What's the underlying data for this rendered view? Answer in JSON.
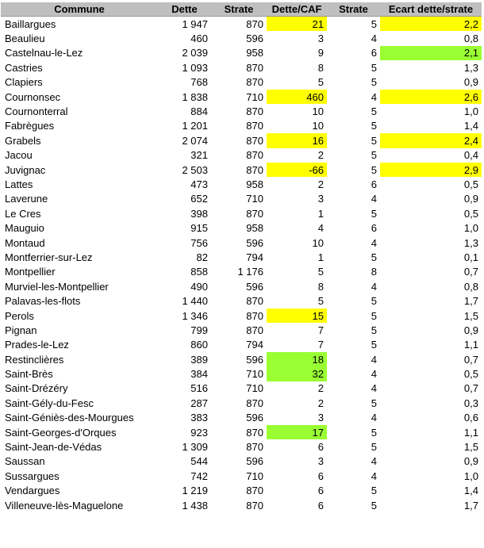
{
  "headers": [
    "Commune",
    "Dette",
    "Strate",
    "Dette/CAF",
    "Strate",
    "Ecart dette/strate"
  ],
  "colors": {
    "header_bg": "#bfbfbf",
    "highlight_yellow": "#ffff00",
    "highlight_green": "#99ff33"
  },
  "rows": [
    {
      "commune": "Baillargues",
      "dette": "1 947",
      "strate": "870",
      "dette_caf": "21",
      "dette_caf_hl": "yellow",
      "strate2": "5",
      "ecart": "2,2",
      "ecart_hl": "yellow"
    },
    {
      "commune": "Beaulieu",
      "dette": "460",
      "strate": "596",
      "dette_caf": "3",
      "dette_caf_hl": "",
      "strate2": "4",
      "ecart": "0,8",
      "ecart_hl": ""
    },
    {
      "commune": "Castelnau-le-Lez",
      "dette": "2 039",
      "strate": "958",
      "dette_caf": "9",
      "dette_caf_hl": "",
      "strate2": "6",
      "ecart": "2,1",
      "ecart_hl": "green"
    },
    {
      "commune": "Castries",
      "dette": "1 093",
      "strate": "870",
      "dette_caf": "8",
      "dette_caf_hl": "",
      "strate2": "5",
      "ecart": "1,3",
      "ecart_hl": ""
    },
    {
      "commune": "Clapiers",
      "dette": "768",
      "strate": "870",
      "dette_caf": "5",
      "dette_caf_hl": "",
      "strate2": "5",
      "ecart": "0,9",
      "ecart_hl": ""
    },
    {
      "commune": "Cournonsec",
      "dette": "1 838",
      "strate": "710",
      "dette_caf": "460",
      "dette_caf_hl": "yellow",
      "strate2": "4",
      "ecart": "2,6",
      "ecart_hl": "yellow"
    },
    {
      "commune": "Cournonterral",
      "dette": "884",
      "strate": "870",
      "dette_caf": "10",
      "dette_caf_hl": "",
      "strate2": "5",
      "ecart": "1,0",
      "ecart_hl": ""
    },
    {
      "commune": "Fabrègues",
      "dette": "1 201",
      "strate": "870",
      "dette_caf": "10",
      "dette_caf_hl": "",
      "strate2": "5",
      "ecart": "1,4",
      "ecart_hl": ""
    },
    {
      "commune": "Grabels",
      "dette": "2 074",
      "strate": "870",
      "dette_caf": "16",
      "dette_caf_hl": "yellow",
      "strate2": "5",
      "ecart": "2,4",
      "ecart_hl": "yellow"
    },
    {
      "commune": "Jacou",
      "dette": "321",
      "strate": "870",
      "dette_caf": "2",
      "dette_caf_hl": "",
      "strate2": "5",
      "ecart": "0,4",
      "ecart_hl": ""
    },
    {
      "commune": "Juvignac",
      "dette": "2 503",
      "strate": "870",
      "dette_caf": "-66",
      "dette_caf_hl": "yellow",
      "strate2": "5",
      "ecart": "2,9",
      "ecart_hl": "yellow"
    },
    {
      "commune": "Lattes",
      "dette": "473",
      "strate": "958",
      "dette_caf": "2",
      "dette_caf_hl": "",
      "strate2": "6",
      "ecart": "0,5",
      "ecart_hl": ""
    },
    {
      "commune": "Laverune",
      "dette": "652",
      "strate": "710",
      "dette_caf": "3",
      "dette_caf_hl": "",
      "strate2": "4",
      "ecart": "0,9",
      "ecart_hl": ""
    },
    {
      "commune": "Le Cres",
      "dette": "398",
      "strate": "870",
      "dette_caf": "1",
      "dette_caf_hl": "",
      "strate2": "5",
      "ecart": "0,5",
      "ecart_hl": ""
    },
    {
      "commune": "Mauguio",
      "dette": "915",
      "strate": "958",
      "dette_caf": "4",
      "dette_caf_hl": "",
      "strate2": "6",
      "ecart": "1,0",
      "ecart_hl": ""
    },
    {
      "commune": "Montaud",
      "dette": "756",
      "strate": "596",
      "dette_caf": "10",
      "dette_caf_hl": "",
      "strate2": "4",
      "ecart": "1,3",
      "ecart_hl": ""
    },
    {
      "commune": "Montferrier-sur-Lez",
      "dette": "82",
      "strate": "794",
      "dette_caf": "1",
      "dette_caf_hl": "",
      "strate2": "5",
      "ecart": "0,1",
      "ecart_hl": ""
    },
    {
      "commune": "Montpellier",
      "dette": "858",
      "strate": "1 176",
      "dette_caf": "5",
      "dette_caf_hl": "",
      "strate2": "8",
      "ecart": "0,7",
      "ecart_hl": ""
    },
    {
      "commune": "Murviel-les-Montpellier",
      "dette": "490",
      "strate": "596",
      "dette_caf": "8",
      "dette_caf_hl": "",
      "strate2": "4",
      "ecart": "0,8",
      "ecart_hl": ""
    },
    {
      "commune": "Palavas-les-flots",
      "dette": "1 440",
      "strate": "870",
      "dette_caf": "5",
      "dette_caf_hl": "",
      "strate2": "5",
      "ecart": "1,7",
      "ecart_hl": ""
    },
    {
      "commune": "Perols",
      "dette": "1 346",
      "strate": "870",
      "dette_caf": "15",
      "dette_caf_hl": "yellow",
      "strate2": "5",
      "ecart": "1,5",
      "ecart_hl": ""
    },
    {
      "commune": "Pignan",
      "dette": "799",
      "strate": "870",
      "dette_caf": "7",
      "dette_caf_hl": "",
      "strate2": "5",
      "ecart": "0,9",
      "ecart_hl": ""
    },
    {
      "commune": "Prades-le-Lez",
      "dette": "860",
      "strate": "794",
      "dette_caf": "7",
      "dette_caf_hl": "",
      "strate2": "5",
      "ecart": "1,1",
      "ecart_hl": ""
    },
    {
      "commune": "Restinclières",
      "dette": "389",
      "strate": "596",
      "dette_caf": "18",
      "dette_caf_hl": "green",
      "strate2": "4",
      "ecart": "0,7",
      "ecart_hl": ""
    },
    {
      "commune": "Saint-Brès",
      "dette": "384",
      "strate": "710",
      "dette_caf": "32",
      "dette_caf_hl": "green",
      "strate2": "4",
      "ecart": "0,5",
      "ecart_hl": ""
    },
    {
      "commune": "Saint-Drézéry",
      "dette": "516",
      "strate": "710",
      "dette_caf": "2",
      "dette_caf_hl": "",
      "strate2": "4",
      "ecart": "0,7",
      "ecart_hl": ""
    },
    {
      "commune": "Saint-Gély-du-Fesc",
      "dette": "287",
      "strate": "870",
      "dette_caf": "2",
      "dette_caf_hl": "",
      "strate2": "5",
      "ecart": "0,3",
      "ecart_hl": ""
    },
    {
      "commune": "Saint-Géniès-des-Mourgues",
      "dette": "383",
      "strate": "596",
      "dette_caf": "3",
      "dette_caf_hl": "",
      "strate2": "4",
      "ecart": "0,6",
      "ecart_hl": ""
    },
    {
      "commune": "Saint-Georges-d'Orques",
      "dette": "923",
      "strate": "870",
      "dette_caf": "17",
      "dette_caf_hl": "green",
      "strate2": "5",
      "ecart": "1,1",
      "ecart_hl": ""
    },
    {
      "commune": "Saint-Jean-de-Védas",
      "dette": "1 309",
      "strate": "870",
      "dette_caf": "6",
      "dette_caf_hl": "",
      "strate2": "5",
      "ecart": "1,5",
      "ecart_hl": ""
    },
    {
      "commune": "Saussan",
      "dette": "544",
      "strate": "596",
      "dette_caf": "3",
      "dette_caf_hl": "",
      "strate2": "4",
      "ecart": "0,9",
      "ecart_hl": ""
    },
    {
      "commune": "Sussargues",
      "dette": "742",
      "strate": "710",
      "dette_caf": "6",
      "dette_caf_hl": "",
      "strate2": "4",
      "ecart": "1,0",
      "ecart_hl": ""
    },
    {
      "commune": "Vendargues",
      "dette": "1 219",
      "strate": "870",
      "dette_caf": "6",
      "dette_caf_hl": "",
      "strate2": "5",
      "ecart": "1,4",
      "ecart_hl": ""
    },
    {
      "commune": "Villeneuve-lès-Maguelone",
      "dette": "1 438",
      "strate": "870",
      "dette_caf": "6",
      "dette_caf_hl": "",
      "strate2": "5",
      "ecart": "1,7",
      "ecart_hl": ""
    }
  ]
}
